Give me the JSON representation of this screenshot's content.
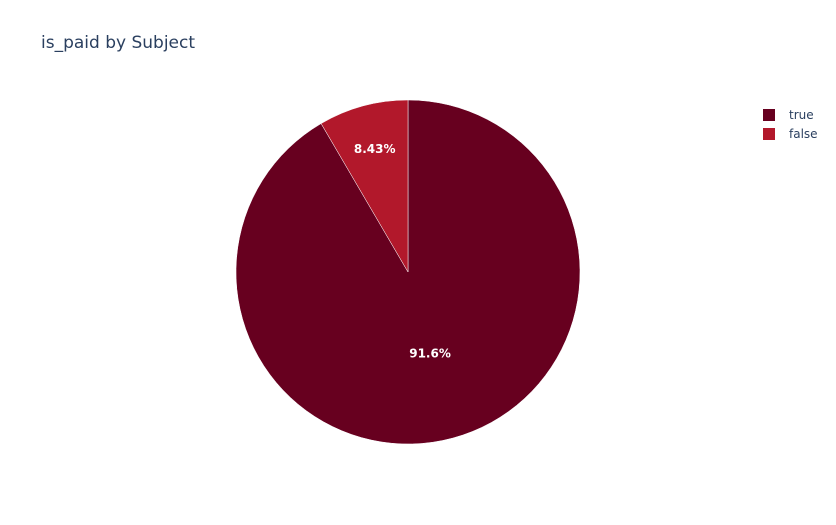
{
  "chart_data": {
    "type": "pie",
    "title": "is_paid by Subject",
    "legend_position": "top-right",
    "slices": [
      {
        "label": "true",
        "value": 91.6,
        "display": "91.6%",
        "color": "#67001f"
      },
      {
        "label": "false",
        "value": 8.43,
        "display": "8.43%",
        "color": "#b2182b"
      }
    ]
  }
}
